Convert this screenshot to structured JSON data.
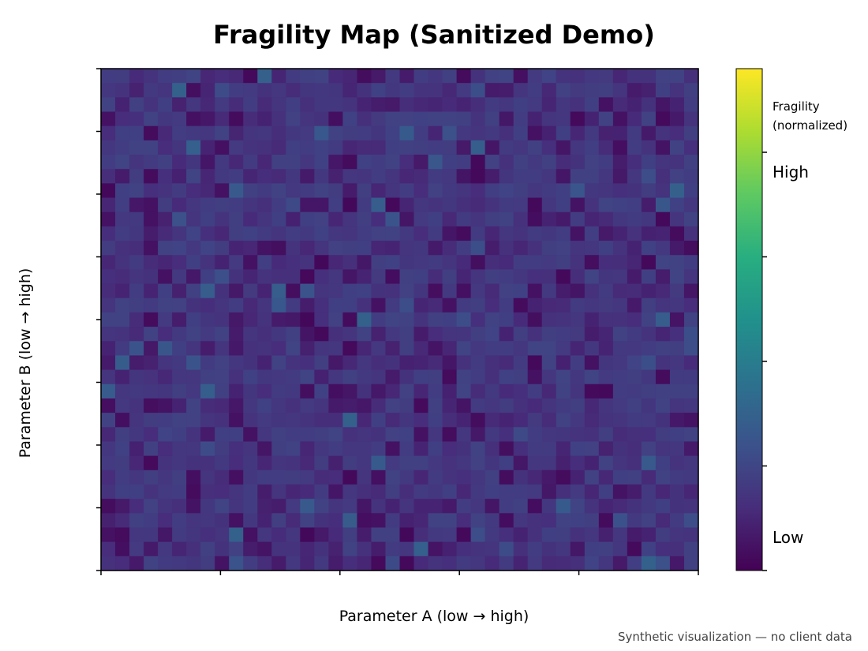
{
  "chart_data": {
    "type": "heatmap",
    "title": "Fragility Map (Sanitized Demo)",
    "xlabel": "Parameter A (low → high)",
    "ylabel": "Parameter B (low → high)",
    "grid": false,
    "colormap": "viridis",
    "vrange": [
      0,
      1
    ],
    "rows": 35,
    "cols": 42,
    "colorbar": {
      "label_line1": "Fragility",
      "label_line2": "(normalized)",
      "tick_high": "High",
      "tick_low": "Low",
      "tick_high_value": 0.83,
      "tick_low_value": 0.04
    },
    "seed": 20240531
  },
  "footnote": "Synthetic visualization — no client data"
}
